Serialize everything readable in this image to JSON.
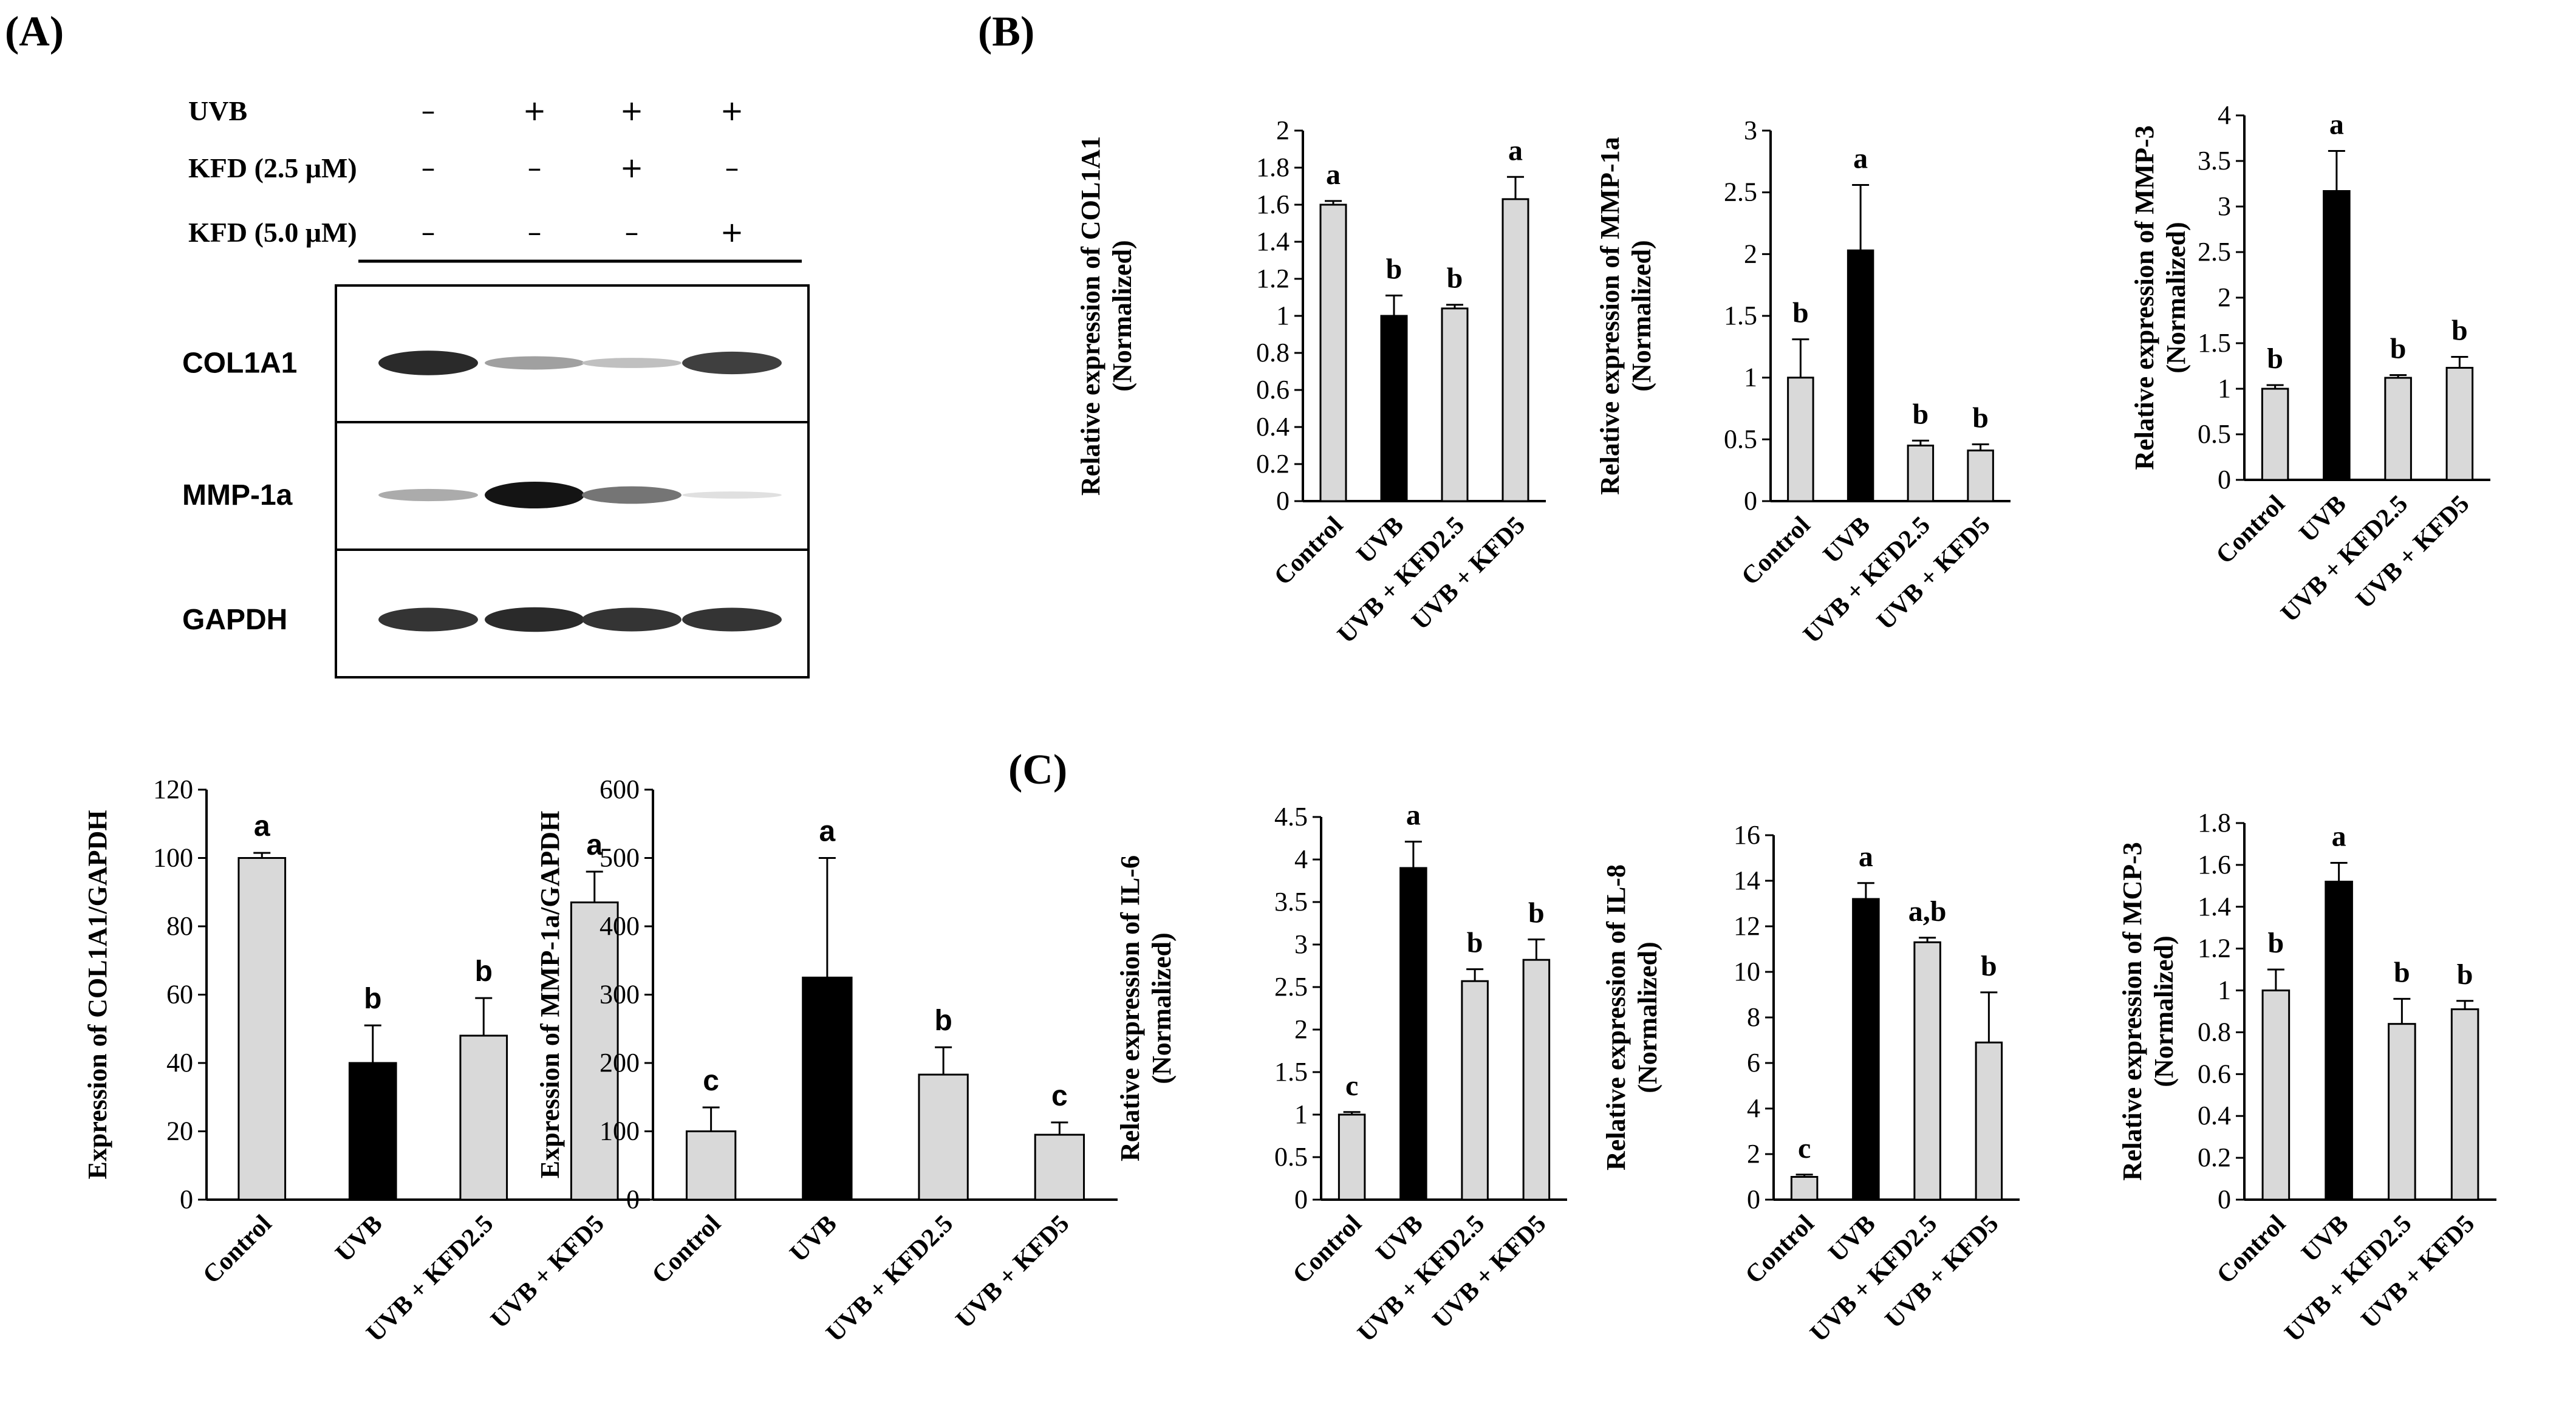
{
  "panel_labels": [
    "(A)",
    "(B)",
    "(C)"
  ],
  "colors": {
    "control_bar": "#d9d9d9",
    "uvb_bar": "#000000",
    "axis": "#000000"
  },
  "blot": {
    "conditions": [
      {
        "label": "UVB",
        "marks": [
          "–",
          "+",
          "+",
          "+"
        ]
      },
      {
        "label": "KFD  (2.5 μM)",
        "marks": [
          "–",
          "–",
          "+",
          "–"
        ]
      },
      {
        "label": "KFD  (5.0 μM)",
        "marks": [
          "–",
          "–",
          "–",
          "+"
        ]
      }
    ],
    "proteins": [
      {
        "label": "COL1A1",
        "intensity": [
          0.9,
          0.35,
          0.2,
          0.8
        ]
      },
      {
        "label": "MMP-1a",
        "intensity": [
          0.3,
          1.0,
          0.55,
          0.05
        ]
      },
      {
        "label": "GAPDH",
        "intensity": [
          0.85,
          0.9,
          0.85,
          0.85
        ]
      }
    ]
  },
  "chart_data": [
    {
      "id": "A1",
      "type": "bar",
      "ylabel": "Expression of COL1A1/GAPDH",
      "ylim": [
        0,
        120
      ],
      "yticks": [
        "0",
        "20",
        "40",
        "60",
        "80",
        "100",
        "120"
      ],
      "categories": [
        "Control",
        "UVB",
        "UVB + KFD2.5",
        "UVB + KFD5"
      ],
      "values": [
        100,
        40,
        48,
        87
      ],
      "errors": [
        1.5,
        11,
        11,
        9
      ],
      "significance": [
        "a",
        "b",
        "b",
        "a"
      ]
    },
    {
      "id": "A2",
      "type": "bar",
      "ylabel": "Expression of MMP-1a/GAPDH",
      "ylim": [
        0,
        600
      ],
      "yticks": [
        "0",
        "100",
        "200",
        "300",
        "400",
        "500",
        "600"
      ],
      "categories": [
        "Control",
        "UVB",
        "UVB + KFD2.5",
        "UVB + KFD5"
      ],
      "values": [
        100,
        325,
        183,
        95
      ],
      "errors": [
        35,
        175,
        40,
        18
      ],
      "significance": [
        "c",
        "a",
        "b",
        "c"
      ]
    },
    {
      "id": "B1",
      "type": "bar",
      "ylabel": "Relative expression of COL1A1",
      "ylabel2": "(Normalized)",
      "ylim": [
        0,
        2
      ],
      "yticks": [
        "0",
        "0.2",
        "0.4",
        "0.6",
        "0.8",
        "1",
        "1.2",
        "1.4",
        "1.6",
        "1.8",
        "2"
      ],
      "categories": [
        "Control",
        "UVB",
        "UVB + KFD2.5",
        "UVB + KFD5"
      ],
      "values": [
        1.6,
        1.0,
        1.04,
        1.63
      ],
      "errors": [
        0.02,
        0.11,
        0.02,
        0.12
      ],
      "significance": [
        "a",
        "b",
        "b",
        "a"
      ]
    },
    {
      "id": "B2",
      "type": "bar",
      "ylabel": "Relative expression of MMP-1a",
      "ylabel2": "(Normalized)",
      "ylim": [
        0,
        3
      ],
      "yticks": [
        "0",
        "0.5",
        "1",
        "1.5",
        "2",
        "2.5",
        "3"
      ],
      "categories": [
        "Control",
        "UVB",
        "UVB + KFD2.5",
        "UVB + KFD5"
      ],
      "values": [
        1.0,
        2.03,
        0.45,
        0.41
      ],
      "errors": [
        0.31,
        0.53,
        0.04,
        0.05
      ],
      "significance": [
        "b",
        "a",
        "b",
        "b"
      ]
    },
    {
      "id": "B3",
      "type": "bar",
      "ylabel": "Relative expression of MMP-3",
      "ylabel2": "(Normalized)",
      "ylim": [
        0,
        4
      ],
      "yticks": [
        "0",
        "0.5",
        "1",
        "1.5",
        "2",
        "2.5",
        "3",
        "3.5",
        "4"
      ],
      "categories": [
        "Control",
        "UVB",
        "UVB + KFD2.5",
        "UVB + KFD5"
      ],
      "values": [
        1.0,
        3.17,
        1.12,
        1.23
      ],
      "errors": [
        0.04,
        0.44,
        0.03,
        0.12
      ],
      "significance": [
        "b",
        "a",
        "b",
        "b"
      ]
    },
    {
      "id": "C1",
      "type": "bar",
      "ylabel": "Relative expression of IL-6",
      "ylabel2": "(Normalized)",
      "ylim": [
        0,
        4.5
      ],
      "yticks": [
        "0",
        "0.5",
        "1",
        "1.5",
        "2",
        "2.5",
        "3",
        "3.5",
        "4",
        "4.5"
      ],
      "categories": [
        "Control",
        "UVB",
        "UVB + KFD2.5",
        "UVB + KFD5"
      ],
      "values": [
        1.0,
        3.9,
        2.57,
        2.82
      ],
      "errors": [
        0.03,
        0.31,
        0.14,
        0.24
      ],
      "significance": [
        "c",
        "a",
        "b",
        "b"
      ]
    },
    {
      "id": "C2",
      "type": "bar",
      "ylabel": "Relative expression of IL-8",
      "ylabel2": "(Normalized)",
      "ylim": [
        0,
        16
      ],
      "yticks": [
        "0",
        "2",
        "4",
        "6",
        "8",
        "10",
        "12",
        "14",
        "16"
      ],
      "categories": [
        "Control",
        "UVB",
        "UVB + KFD2.5",
        "UVB + KFD5"
      ],
      "values": [
        1.0,
        13.2,
        11.3,
        6.9
      ],
      "errors": [
        0.1,
        0.7,
        0.2,
        2.2
      ],
      "significance": [
        "c",
        "a",
        "a,b",
        "b"
      ]
    },
    {
      "id": "C3",
      "type": "bar",
      "ylabel": "Relative expression of MCP-3",
      "ylabel2": "(Normalized)",
      "ylim": [
        0,
        1.8
      ],
      "yticks": [
        "0",
        "0.2",
        "0.4",
        "0.6",
        "0.8",
        "1",
        "1.2",
        "1.4",
        "1.6",
        "1.8"
      ],
      "categories": [
        "Control",
        "UVB",
        "UVB + KFD2.5",
        "UVB + KFD5"
      ],
      "values": [
        1.0,
        1.52,
        0.84,
        0.91
      ],
      "errors": [
        0.1,
        0.09,
        0.12,
        0.04
      ],
      "significance": [
        "b",
        "a",
        "b",
        "b"
      ]
    }
  ]
}
